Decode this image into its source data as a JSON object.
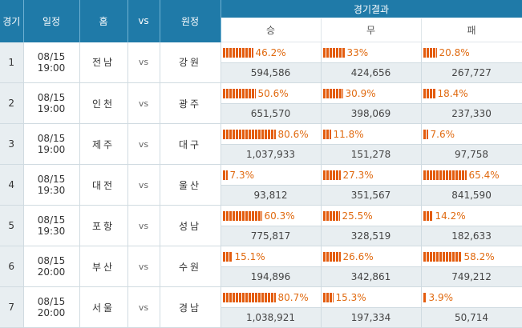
{
  "headers": {
    "game": "경기",
    "schedule": "일정",
    "home": "홈",
    "vs": "vs",
    "away": "원정",
    "result": "경기결과",
    "win": "승",
    "draw": "무",
    "lose": "패"
  },
  "bar_color": "#e35c0e",
  "rows": [
    {
      "no": "1",
      "date": "08/15 19:00",
      "home": "전남",
      "vs": "vs",
      "away": "강원",
      "win": {
        "pct": "46.2%",
        "value": 46.2,
        "count": "594,586"
      },
      "draw": {
        "pct": "33%",
        "value": 33.0,
        "count": "424,656"
      },
      "lose": {
        "pct": "20.8%",
        "value": 20.8,
        "count": "267,727"
      }
    },
    {
      "no": "2",
      "date": "08/15 19:00",
      "home": "인천",
      "vs": "vs",
      "away": "광주",
      "win": {
        "pct": "50.6%",
        "value": 50.6,
        "count": "651,570"
      },
      "draw": {
        "pct": "30.9%",
        "value": 30.9,
        "count": "398,069"
      },
      "lose": {
        "pct": "18.4%",
        "value": 18.4,
        "count": "237,330"
      }
    },
    {
      "no": "3",
      "date": "08/15 19:00",
      "home": "제주",
      "vs": "vs",
      "away": "대구",
      "win": {
        "pct": "80.6%",
        "value": 80.6,
        "count": "1,037,933"
      },
      "draw": {
        "pct": "11.8%",
        "value": 11.8,
        "count": "151,278"
      },
      "lose": {
        "pct": "7.6%",
        "value": 7.6,
        "count": "97,758"
      }
    },
    {
      "no": "4",
      "date": "08/15 19:30",
      "home": "대전",
      "vs": "vs",
      "away": "울산",
      "win": {
        "pct": "7.3%",
        "value": 7.3,
        "count": "93,812"
      },
      "draw": {
        "pct": "27.3%",
        "value": 27.3,
        "count": "351,567"
      },
      "lose": {
        "pct": "65.4%",
        "value": 65.4,
        "count": "841,590"
      }
    },
    {
      "no": "5",
      "date": "08/15 19:30",
      "home": "포항",
      "vs": "vs",
      "away": "성남",
      "win": {
        "pct": "60.3%",
        "value": 60.3,
        "count": "775,817"
      },
      "draw": {
        "pct": "25.5%",
        "value": 25.5,
        "count": "328,519"
      },
      "lose": {
        "pct": "14.2%",
        "value": 14.2,
        "count": "182,633"
      }
    },
    {
      "no": "6",
      "date": "08/15 20:00",
      "home": "부산",
      "vs": "vs",
      "away": "수원",
      "win": {
        "pct": "15.1%",
        "value": 15.1,
        "count": "194,896"
      },
      "draw": {
        "pct": "26.6%",
        "value": 26.6,
        "count": "342,861"
      },
      "lose": {
        "pct": "58.2%",
        "value": 58.2,
        "count": "749,212"
      }
    },
    {
      "no": "7",
      "date": "08/15 20:00",
      "home": "서울",
      "vs": "vs",
      "away": "경남",
      "win": {
        "pct": "80.7%",
        "value": 80.7,
        "count": "1,038,921"
      },
      "draw": {
        "pct": "15.3%",
        "value": 15.3,
        "count": "197,334"
      },
      "lose": {
        "pct": "3.9%",
        "value": 3.9,
        "count": "50,714"
      }
    }
  ]
}
